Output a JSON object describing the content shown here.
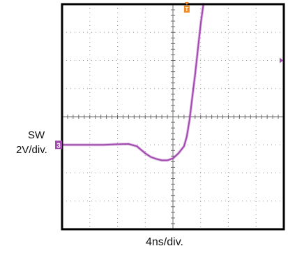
{
  "labels": {
    "channel_name": "SW",
    "vertical_scale": "2V/div.",
    "horizontal_scale": "4ns/div."
  },
  "markers": {
    "channel_marker": "3",
    "trigger_marker": "T"
  },
  "colors": {
    "trace": "#a24ab0",
    "channel_marker": "#a24ab0",
    "trigger_marker": "#f08a24",
    "grid": "#9a9a9a",
    "frame": "#000000",
    "screen": "#ffffff"
  },
  "chart_data": {
    "type": "line",
    "grid": true,
    "x_divisions": 8,
    "y_divisions": 8,
    "xlim_div": [
      -4,
      4
    ],
    "ylim_div": [
      -4,
      4
    ],
    "trace_level_div": -1,
    "series": [
      {
        "x": [
          -4.0,
          -3.5,
          -3.0,
          -2.5,
          -2.0,
          -1.6,
          -1.3,
          -1.0,
          -0.8,
          -0.6,
          -0.4,
          -0.2,
          0.0,
          0.2,
          0.4,
          0.5,
          0.6,
          0.7,
          0.8,
          0.9,
          1.0,
          1.1
        ],
        "y": [
          -1.0,
          -1.0,
          -1.0,
          -1.0,
          -0.98,
          -0.97,
          -1.05,
          -1.3,
          -1.43,
          -1.5,
          -1.55,
          -1.55,
          -1.48,
          -1.3,
          -1.05,
          -0.7,
          -0.1,
          0.7,
          1.5,
          2.4,
          3.3,
          4.0
        ]
      }
    ]
  }
}
